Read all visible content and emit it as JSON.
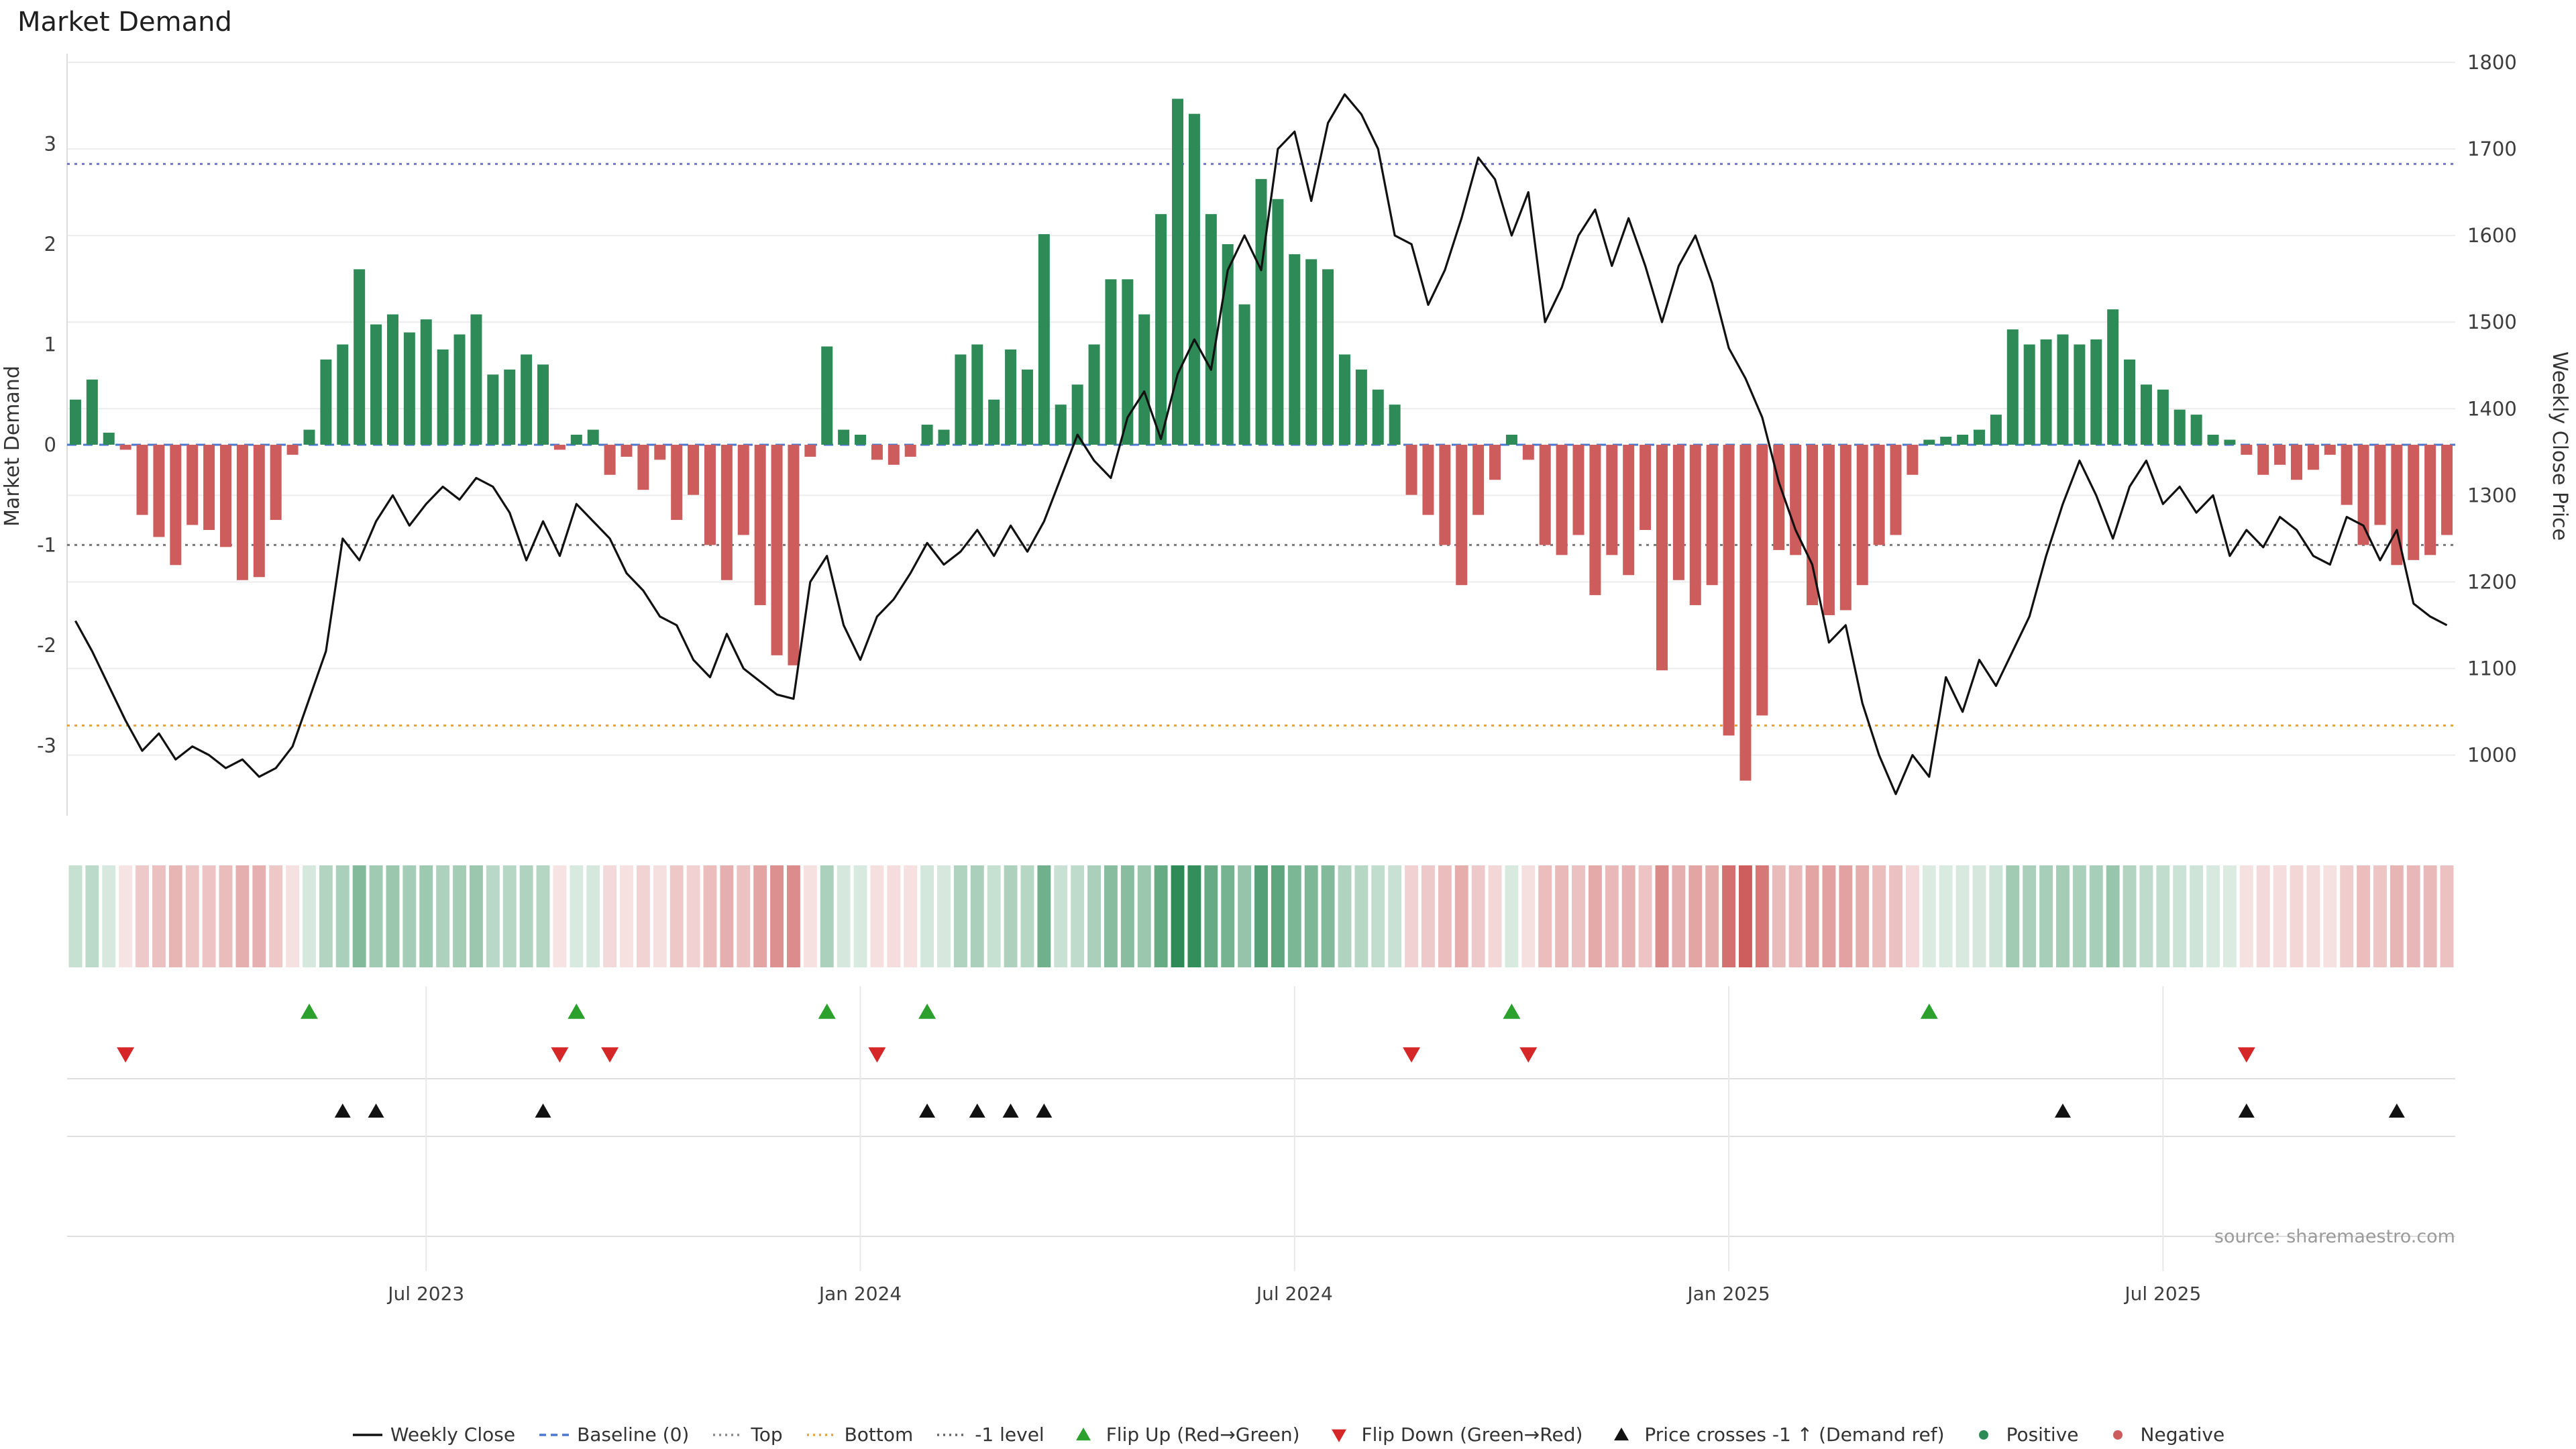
{
  "title": "Market Demand",
  "source": "source: sharemaestro.com",
  "axes": {
    "left_label": "Market Demand",
    "right_label": "Weekly Close Price"
  },
  "colors": {
    "positive": "#2e8b57",
    "negative": "#cd5c5c",
    "price_line": "#111111",
    "baseline": "#4878cf",
    "top_line": "#7276c8",
    "bottom_line": "#e8a33d",
    "minus_one_line": "#777777",
    "flip_up": "#2ca02c",
    "flip_down": "#d62728",
    "price_cross": "#111111",
    "grid": "#ececec",
    "rule": "#dfdfdf",
    "vline": "#e8e8e8",
    "tick_text": "#3d3d3d",
    "source_text": "#9a9a9a"
  },
  "chart_data": {
    "type": "bar",
    "secondary_type": "line",
    "x_unit": "week",
    "title": "Market Demand",
    "left_axis": {
      "label": "Market Demand",
      "range": [
        -3.7,
        3.9
      ],
      "ticks": [
        -3,
        -2,
        -1,
        0,
        1,
        2,
        3
      ]
    },
    "right_axis": {
      "label": "Weekly Close Price",
      "range": [
        930,
        1810
      ],
      "ticks": [
        1000,
        1100,
        1200,
        1300,
        1400,
        1500,
        1600,
        1700,
        1800
      ]
    },
    "x_ticks": [
      {
        "label": "Jul 2023",
        "week": 21
      },
      {
        "label": "Jan 2024",
        "week": 47
      },
      {
        "label": "Jul 2024",
        "week": 73
      },
      {
        "label": "Jan 2025",
        "week": 99
      },
      {
        "label": "Jul 2025",
        "week": 125
      }
    ],
    "reference_lines": {
      "baseline": 0,
      "top": 2.8,
      "bottom": -2.8,
      "minus_one_level": -1
    },
    "series": [
      {
        "name": "Market Demand",
        "type": "bar",
        "axis": "left",
        "values": [
          0.45,
          0.65,
          0.12,
          -0.05,
          -0.7,
          -0.92,
          -1.2,
          -0.8,
          -0.85,
          -1.02,
          -1.35,
          -1.32,
          -0.75,
          -0.1,
          0.15,
          0.85,
          1.0,
          1.75,
          1.2,
          1.3,
          1.12,
          1.25,
          0.95,
          1.1,
          1.3,
          0.7,
          0.75,
          0.9,
          0.8,
          -0.05,
          0.1,
          0.15,
          -0.3,
          -0.12,
          -0.45,
          -0.15,
          -0.75,
          -0.5,
          -1.0,
          -1.35,
          -0.9,
          -1.6,
          -2.1,
          -2.2,
          -0.12,
          0.98,
          0.15,
          0.1,
          -0.15,
          -0.2,
          -0.12,
          0.2,
          0.15,
          0.9,
          1.0,
          0.45,
          0.95,
          0.75,
          2.1,
          0.4,
          0.6,
          1.0,
          1.65,
          1.65,
          1.3,
          2.3,
          3.45,
          3.3,
          2.3,
          2.0,
          1.4,
          2.65,
          2.45,
          1.9,
          1.85,
          1.75,
          0.9,
          0.75,
          0.55,
          0.4,
          -0.5,
          -0.7,
          -1.0,
          -1.4,
          -0.7,
          -0.35,
          0.1,
          -0.15,
          -1.0,
          -1.1,
          -0.9,
          -1.5,
          -1.1,
          -1.3,
          -0.85,
          -2.25,
          -1.35,
          -1.6,
          -1.4,
          -2.9,
          -3.35,
          -2.7,
          -1.05,
          -1.1,
          -1.6,
          -1.7,
          -1.65,
          -1.4,
          -1.0,
          -0.9,
          -0.3,
          0.05,
          0.08,
          0.1,
          0.15,
          0.3,
          1.15,
          1.0,
          1.05,
          1.1,
          1.0,
          1.05,
          1.35,
          0.85,
          0.6,
          0.55,
          0.35,
          0.3,
          0.1,
          0.05,
          -0.1,
          -0.3,
          -0.2,
          -0.35,
          -0.25,
          -0.1,
          -0.6,
          -1.0,
          -0.8,
          -1.2,
          -1.15,
          -1.1,
          -0.9
        ]
      },
      {
        "name": "Weekly Close",
        "type": "line",
        "axis": "right",
        "values": [
          1155,
          1120,
          1080,
          1040,
          1005,
          1025,
          995,
          1010,
          1000,
          985,
          995,
          975,
          985,
          1010,
          1065,
          1120,
          1250,
          1225,
          1270,
          1300,
          1265,
          1290,
          1310,
          1295,
          1320,
          1310,
          1280,
          1225,
          1270,
          1230,
          1290,
          1270,
          1250,
          1210,
          1190,
          1160,
          1150,
          1110,
          1090,
          1140,
          1100,
          1085,
          1070,
          1065,
          1200,
          1230,
          1150,
          1110,
          1160,
          1180,
          1210,
          1245,
          1220,
          1235,
          1260,
          1230,
          1265,
          1235,
          1270,
          1320,
          1370,
          1340,
          1320,
          1390,
          1420,
          1365,
          1440,
          1480,
          1445,
          1560,
          1600,
          1560,
          1700,
          1720,
          1640,
          1730,
          1763,
          1740,
          1700,
          1600,
          1590,
          1520,
          1560,
          1620,
          1690,
          1665,
          1600,
          1650,
          1500,
          1540,
          1600,
          1630,
          1565,
          1620,
          1565,
          1500,
          1565,
          1600,
          1545,
          1470,
          1435,
          1390,
          1315,
          1260,
          1220,
          1130,
          1150,
          1060,
          1000,
          955,
          1000,
          975,
          1090,
          1050,
          1110,
          1080,
          1120,
          1160,
          1230,
          1290,
          1340,
          1300,
          1250,
          1310,
          1340,
          1290,
          1310,
          1280,
          1300,
          1230,
          1260,
          1240,
          1275,
          1260,
          1230,
          1220,
          1275,
          1265,
          1225,
          1260,
          1175,
          1160,
          1150
        ]
      }
    ],
    "markers": {
      "flip_up_weeks": [
        14,
        30,
        45,
        51,
        86,
        111
      ],
      "flip_down_weeks": [
        3,
        29,
        32,
        48,
        80,
        87,
        130
      ],
      "price_cross_weeks": [
        16,
        18,
        28,
        51,
        54,
        56,
        58,
        119,
        130,
        139
      ]
    }
  },
  "legend": {
    "items": [
      {
        "swatch": "line",
        "color": "#111111",
        "label": "Weekly Close"
      },
      {
        "swatch": "dashed",
        "color": "#4878cf",
        "label": "Baseline (0)"
      },
      {
        "swatch": "dotted",
        "color": "#888888",
        "label": "Top"
      },
      {
        "swatch": "dotted",
        "color": "#e8a33d",
        "label": "Bottom"
      },
      {
        "swatch": "dotted",
        "color": "#666666",
        "label": "-1 level"
      },
      {
        "swatch": "triangle-up",
        "color": "#2ca02c",
        "label": "Flip Up (Red→Green)"
      },
      {
        "swatch": "triangle-down",
        "color": "#d62728",
        "label": "Flip Down (Green→Red)"
      },
      {
        "swatch": "triangle-up",
        "color": "#111111",
        "label": "Price crosses -1 ↑ (Demand ref)"
      },
      {
        "swatch": "circle",
        "color": "#2e8b57",
        "label": "Positive"
      },
      {
        "swatch": "circle",
        "color": "#cd5c5c",
        "label": "Negative"
      }
    ]
  }
}
